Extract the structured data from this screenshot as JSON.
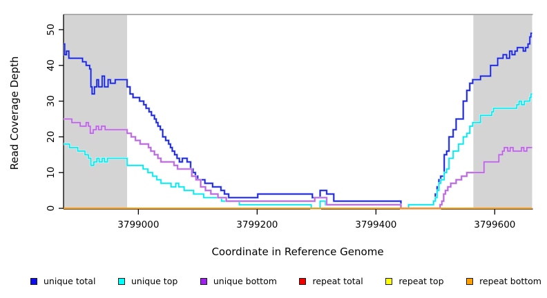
{
  "figure": {
    "xlabel": "Coordinate in Reference Genome",
    "ylabel": "Read Coverage Depth"
  },
  "legend": {
    "items": [
      {
        "label": "unique total",
        "color": "#0d0df0"
      },
      {
        "label": "unique top",
        "color": "#00ffff"
      },
      {
        "label": "unique bottom",
        "color": "#a020f0"
      },
      {
        "label": "repeat total",
        "color": "#ee0000"
      },
      {
        "label": "repeat top",
        "color": "#ffff00"
      },
      {
        "label": "repeat bottom",
        "color": "#ffa000"
      }
    ]
  },
  "chart_data": {
    "type": "line",
    "step": true,
    "title": "",
    "xlabel": "Coordinate in Reference Genome",
    "ylabel": "Read Coverage Depth",
    "xlim": [
      3798874,
      3799663
    ],
    "ylim": [
      -1.2,
      54.2
    ],
    "x_ticks": [
      3799000,
      3799200,
      3799400,
      3799600
    ],
    "y_ticks": [
      0,
      10,
      20,
      30,
      40,
      50
    ],
    "grid": false,
    "legend_position": "bottom",
    "shaded_regions": [
      {
        "x0": 3798874,
        "x1": 3798981,
        "color": "#d4d4d4"
      },
      {
        "x0": 3799564,
        "x1": 3799663,
        "color": "#d4d4d4"
      }
    ],
    "series": [
      {
        "name": "unique total",
        "color": "#1c1cd8",
        "halo": "#a0b4f4",
        "points": [
          [
            3798874,
            46
          ],
          [
            3798876,
            43
          ],
          [
            3798879,
            44
          ],
          [
            3798883,
            42
          ],
          [
            3798906,
            41
          ],
          [
            3798912,
            40
          ],
          [
            3798918,
            39
          ],
          [
            3798920,
            34
          ],
          [
            3798922,
            32
          ],
          [
            3798926,
            34
          ],
          [
            3798930,
            36
          ],
          [
            3798933,
            34
          ],
          [
            3798939,
            37
          ],
          [
            3798943,
            34
          ],
          [
            3798949,
            36
          ],
          [
            3798953,
            35
          ],
          [
            3798961,
            36
          ],
          [
            3798981,
            34
          ],
          [
            3798986,
            32
          ],
          [
            3798991,
            31
          ],
          [
            3799002,
            30
          ],
          [
            3799009,
            29
          ],
          [
            3799013,
            28
          ],
          [
            3799018,
            27
          ],
          [
            3799022,
            26
          ],
          [
            3799027,
            25
          ],
          [
            3799030,
            24
          ],
          [
            3799033,
            23
          ],
          [
            3799037,
            22
          ],
          [
            3799041,
            20
          ],
          [
            3799046,
            19
          ],
          [
            3799051,
            18
          ],
          [
            3799054,
            17
          ],
          [
            3799057,
            16
          ],
          [
            3799061,
            15
          ],
          [
            3799065,
            14
          ],
          [
            3799069,
            13
          ],
          [
            3799074,
            14
          ],
          [
            3799082,
            13
          ],
          [
            3799088,
            11
          ],
          [
            3799092,
            10
          ],
          [
            3799096,
            9
          ],
          [
            3799100,
            8
          ],
          [
            3799112,
            7
          ],
          [
            3799125,
            6
          ],
          [
            3799139,
            5
          ],
          [
            3799145,
            4
          ],
          [
            3799152,
            3
          ],
          [
            3799201,
            4
          ],
          [
            3799293,
            3
          ],
          [
            3799306,
            5
          ],
          [
            3799317,
            4
          ],
          [
            3799329,
            2
          ],
          [
            3799442,
            0
          ],
          [
            3799455,
            1
          ],
          [
            3799497,
            2
          ],
          [
            3799500,
            4
          ],
          [
            3799503,
            6
          ],
          [
            3799506,
            8
          ],
          [
            3799509,
            9
          ],
          [
            3799515,
            15
          ],
          [
            3799519,
            16
          ],
          [
            3799523,
            20
          ],
          [
            3799530,
            22
          ],
          [
            3799535,
            25
          ],
          [
            3799547,
            30
          ],
          [
            3799553,
            33
          ],
          [
            3799558,
            35
          ],
          [
            3799563,
            36
          ],
          [
            3799576,
            37
          ],
          [
            3799593,
            40
          ],
          [
            3799605,
            42
          ],
          [
            3799614,
            43
          ],
          [
            3799620,
            42
          ],
          [
            3799625,
            44
          ],
          [
            3799629,
            43
          ],
          [
            3799634,
            44
          ],
          [
            3799638,
            45
          ],
          [
            3799648,
            44
          ],
          [
            3799652,
            45
          ],
          [
            3799656,
            46
          ],
          [
            3799659,
            48
          ],
          [
            3799661,
            49
          ]
        ]
      },
      {
        "name": "unique top",
        "color": "#00e6ee",
        "halo": "#baffff",
        "points": [
          [
            3798874,
            18
          ],
          [
            3798884,
            17
          ],
          [
            3798898,
            16
          ],
          [
            3798910,
            15
          ],
          [
            3798916,
            14
          ],
          [
            3798920,
            12
          ],
          [
            3798925,
            13
          ],
          [
            3798930,
            14
          ],
          [
            3798934,
            13
          ],
          [
            3798939,
            14
          ],
          [
            3798943,
            13
          ],
          [
            3798948,
            14
          ],
          [
            3798981,
            12
          ],
          [
            3799008,
            11
          ],
          [
            3799016,
            10
          ],
          [
            3799024,
            9
          ],
          [
            3799031,
            8
          ],
          [
            3799038,
            7
          ],
          [
            3799055,
            6
          ],
          [
            3799063,
            7
          ],
          [
            3799068,
            6
          ],
          [
            3799077,
            5
          ],
          [
            3799093,
            4
          ],
          [
            3799110,
            3
          ],
          [
            3799140,
            2
          ],
          [
            3799170,
            1
          ],
          [
            3799291,
            0
          ],
          [
            3799306,
            2
          ],
          [
            3799315,
            1
          ],
          [
            3799442,
            0
          ],
          [
            3799455,
            1
          ],
          [
            3799497,
            2
          ],
          [
            3799500,
            3
          ],
          [
            3799503,
            5
          ],
          [
            3799506,
            7
          ],
          [
            3799509,
            8
          ],
          [
            3799515,
            10
          ],
          [
            3799519,
            11
          ],
          [
            3799523,
            14
          ],
          [
            3799530,
            16
          ],
          [
            3799539,
            18
          ],
          [
            3799547,
            20
          ],
          [
            3799553,
            21
          ],
          [
            3799558,
            23
          ],
          [
            3799563,
            24
          ],
          [
            3799576,
            26
          ],
          [
            3799595,
            27
          ],
          [
            3799598,
            28
          ],
          [
            3799637,
            29
          ],
          [
            3799641,
            30
          ],
          [
            3799645,
            29
          ],
          [
            3799650,
            30
          ],
          [
            3799659,
            31
          ],
          [
            3799661,
            32
          ]
        ]
      },
      {
        "name": "unique bottom",
        "color": "#b464dc",
        "halo": "#e4bcf2",
        "points": [
          [
            3798874,
            25
          ],
          [
            3798888,
            24
          ],
          [
            3798902,
            23
          ],
          [
            3798912,
            24
          ],
          [
            3798916,
            23
          ],
          [
            3798919,
            21
          ],
          [
            3798924,
            22
          ],
          [
            3798929,
            23
          ],
          [
            3798933,
            22
          ],
          [
            3798938,
            23
          ],
          [
            3798944,
            22
          ],
          [
            3798981,
            21
          ],
          [
            3798988,
            20
          ],
          [
            3798995,
            19
          ],
          [
            3799003,
            18
          ],
          [
            3799017,
            17
          ],
          [
            3799021,
            16
          ],
          [
            3799027,
            15
          ],
          [
            3799033,
            14
          ],
          [
            3799038,
            13
          ],
          [
            3799060,
            12
          ],
          [
            3799066,
            11
          ],
          [
            3799090,
            9
          ],
          [
            3799097,
            8
          ],
          [
            3799105,
            6
          ],
          [
            3799113,
            5
          ],
          [
            3799122,
            4
          ],
          [
            3799134,
            3
          ],
          [
            3799148,
            2
          ],
          [
            3799297,
            3
          ],
          [
            3799317,
            1
          ],
          [
            3799442,
            0
          ],
          [
            3799508,
            1
          ],
          [
            3799511,
            2
          ],
          [
            3799514,
            4
          ],
          [
            3799517,
            5
          ],
          [
            3799521,
            6
          ],
          [
            3799526,
            7
          ],
          [
            3799535,
            8
          ],
          [
            3799544,
            9
          ],
          [
            3799553,
            10
          ],
          [
            3799582,
            13
          ],
          [
            3799607,
            15
          ],
          [
            3799613,
            16
          ],
          [
            3799616,
            17
          ],
          [
            3799622,
            16
          ],
          [
            3799626,
            17
          ],
          [
            3799631,
            16
          ],
          [
            3799645,
            17
          ],
          [
            3799649,
            16
          ],
          [
            3799654,
            17
          ]
        ]
      },
      {
        "name": "repeat total",
        "color": "#ee0000",
        "halo": null,
        "points": [
          [
            3798874,
            0
          ]
        ]
      },
      {
        "name": "repeat top",
        "color": "#ffff00",
        "halo": null,
        "points": [
          [
            3798874,
            0
          ]
        ]
      },
      {
        "name": "repeat bottom",
        "color": "#ff9100",
        "halo": null,
        "points": [
          [
            3798874,
            0
          ]
        ]
      }
    ]
  }
}
